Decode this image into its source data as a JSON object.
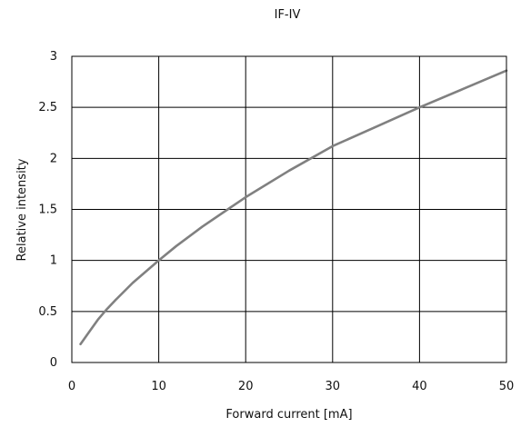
{
  "chart_data": {
    "type": "line",
    "title": "IF-IV",
    "xlabel": "Forward current [mA]",
    "ylabel": "Relative intensity",
    "xlim": [
      0,
      50
    ],
    "ylim": [
      0,
      3
    ],
    "xticks": [
      0,
      10,
      20,
      30,
      40,
      50
    ],
    "yticks": [
      0,
      0.5,
      1,
      1.5,
      2,
      2.5,
      3
    ],
    "grid": true,
    "legend": "none",
    "series": [
      {
        "x": [
          1,
          2,
          3,
          4,
          5,
          7,
          10,
          12,
          15,
          20,
          25,
          30,
          35,
          40,
          45,
          50
        ],
        "y": [
          0.18,
          0.3,
          0.42,
          0.52,
          0.61,
          0.78,
          1.0,
          1.14,
          1.33,
          1.62,
          1.88,
          2.12,
          2.31,
          2.5,
          2.68,
          2.86
        ]
      }
    ],
    "colors": {
      "line": "#808080",
      "grid": "#000000",
      "axis": "#000000"
    }
  }
}
